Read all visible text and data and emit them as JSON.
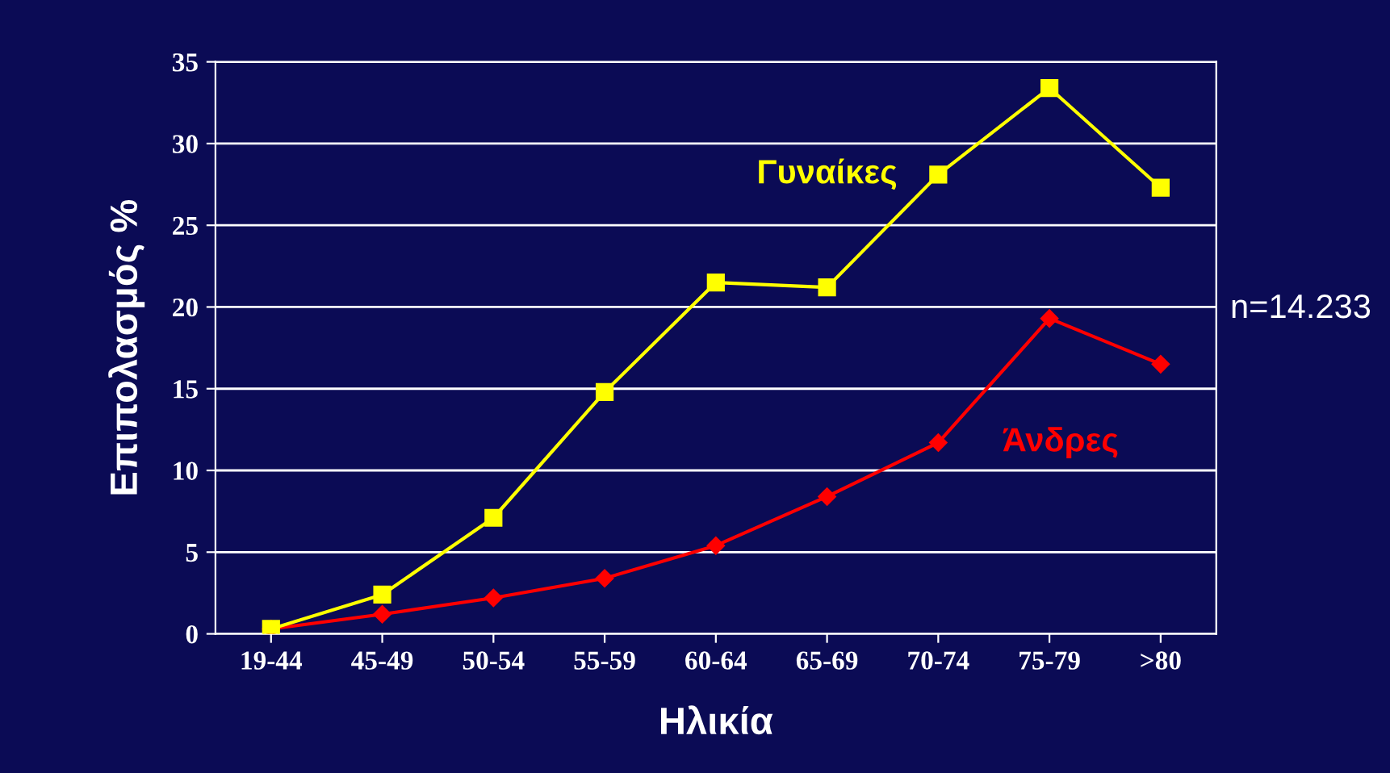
{
  "chart_data": {
    "type": "line",
    "xlabel": "Ηλικία",
    "ylabel": "Επιπολασμός %",
    "categories": [
      "19-44",
      "45-49",
      "50-54",
      "55-59",
      "60-64",
      "65-69",
      "70-74",
      "75-79",
      ">80"
    ],
    "series": [
      {
        "name": "Γυναίκες",
        "color": "#ffff00",
        "marker": "square",
        "values": [
          0.3,
          2.4,
          7.1,
          14.8,
          21.5,
          21.2,
          28.1,
          33.4,
          27.3
        ]
      },
      {
        "name": "Άνδρες",
        "color": "#ff0000",
        "marker": "diamond",
        "values": [
          0.3,
          1.2,
          2.2,
          3.4,
          5.4,
          8.4,
          11.7,
          19.3,
          16.5
        ]
      }
    ],
    "ylim": [
      0,
      35
    ],
    "yticks": [
      0,
      5,
      10,
      15,
      20,
      25,
      30,
      35
    ],
    "grid": "y",
    "legend": false,
    "annotations": [
      "n=14.233"
    ]
  }
}
